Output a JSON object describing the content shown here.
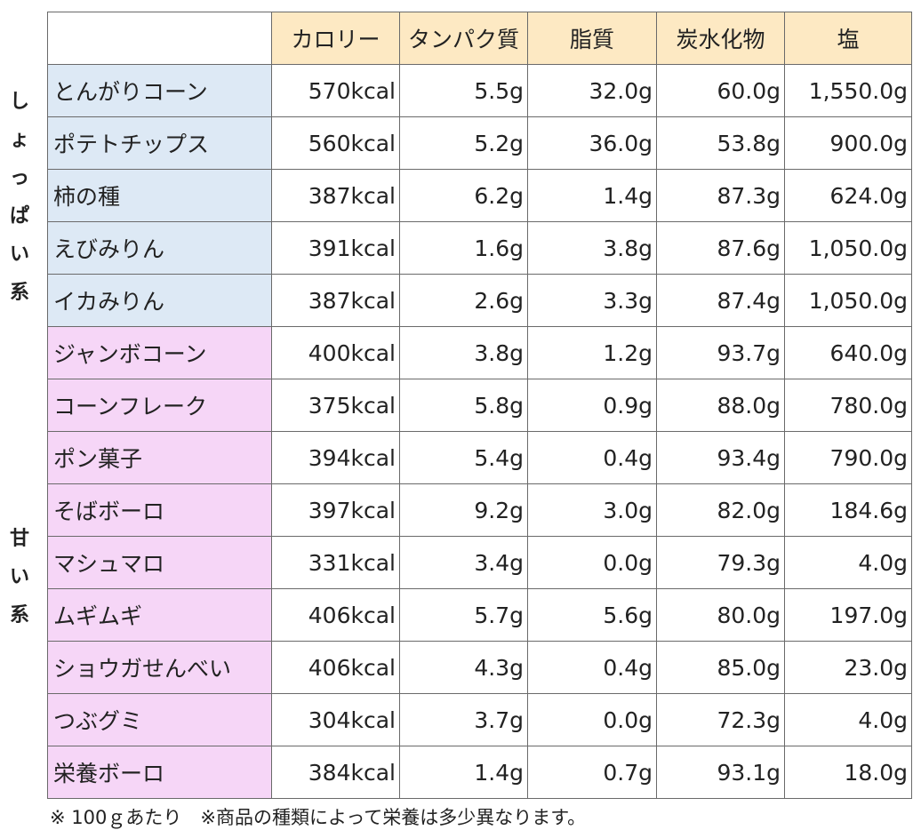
{
  "headers": [
    "",
    "カロリー",
    "タンパク質",
    "脂質",
    "炭水化物",
    "塩"
  ],
  "groups": [
    {
      "label": [
        "し",
        "ょ",
        "っ",
        "ぱ",
        "い",
        "系"
      ],
      "color": "#dde9f5"
    },
    {
      "label": [
        "甘",
        "い",
        "系"
      ],
      "color": "#f6d6f7"
    }
  ],
  "rows": [
    {
      "group": 0,
      "name": "とんがりコーン",
      "values": [
        "570kcal",
        "5.5g",
        "32.0g",
        "60.0g",
        "1,550.0g"
      ]
    },
    {
      "group": 0,
      "name": "ポテトチップス",
      "values": [
        "560kcal",
        "5.2g",
        "36.0g",
        "53.8g",
        "900.0g"
      ]
    },
    {
      "group": 0,
      "name": "柿の種",
      "values": [
        "387kcal",
        "6.2g",
        "1.4g",
        "87.3g",
        "624.0g"
      ]
    },
    {
      "group": 0,
      "name": "えびみりん",
      "values": [
        "391kcal",
        "1.6g",
        "3.8g",
        "87.6g",
        "1,050.0g"
      ]
    },
    {
      "group": 0,
      "name": "イカみりん",
      "values": [
        "387kcal",
        "2.6g",
        "3.3g",
        "87.4g",
        "1,050.0g"
      ]
    },
    {
      "group": 1,
      "name": "ジャンボコーン",
      "values": [
        "400kcal",
        "3.8g",
        "1.2g",
        "93.7g",
        "640.0g"
      ]
    },
    {
      "group": 1,
      "name": "コーンフレーク",
      "values": [
        "375kcal",
        "5.8g",
        "0.9g",
        "88.0g",
        "780.0g"
      ]
    },
    {
      "group": 1,
      "name": "ポン菓子",
      "values": [
        "394kcal",
        "5.4g",
        "0.4g",
        "93.4g",
        "790.0g"
      ]
    },
    {
      "group": 1,
      "name": "そばボーロ",
      "values": [
        "397kcal",
        "9.2g",
        "3.0g",
        "82.0g",
        "184.6g"
      ]
    },
    {
      "group": 1,
      "name": "マシュマロ",
      "values": [
        "331kcal",
        "3.4g",
        "0.0g",
        "79.3g",
        "4.0g"
      ]
    },
    {
      "group": 1,
      "name": "ムギムギ",
      "values": [
        "406kcal",
        "5.7g",
        "5.6g",
        "80.0g",
        "197.0g"
      ]
    },
    {
      "group": 1,
      "name": "ショウガせんべい",
      "values": [
        "406kcal",
        "4.3g",
        "0.4g",
        "85.0g",
        "23.0g"
      ]
    },
    {
      "group": 1,
      "name": "つぶグミ",
      "values": [
        "304kcal",
        "3.7g",
        "0.0g",
        "72.3g",
        "4.0g"
      ]
    },
    {
      "group": 1,
      "name": "栄養ボーロ",
      "values": [
        "384kcal",
        "1.4g",
        "0.7g",
        "93.1g",
        "18.0g"
      ]
    }
  ],
  "header_color": "#fde9c3",
  "note": "※ 100ｇあたり　※商品の種類によって栄養は多少異なります。"
}
